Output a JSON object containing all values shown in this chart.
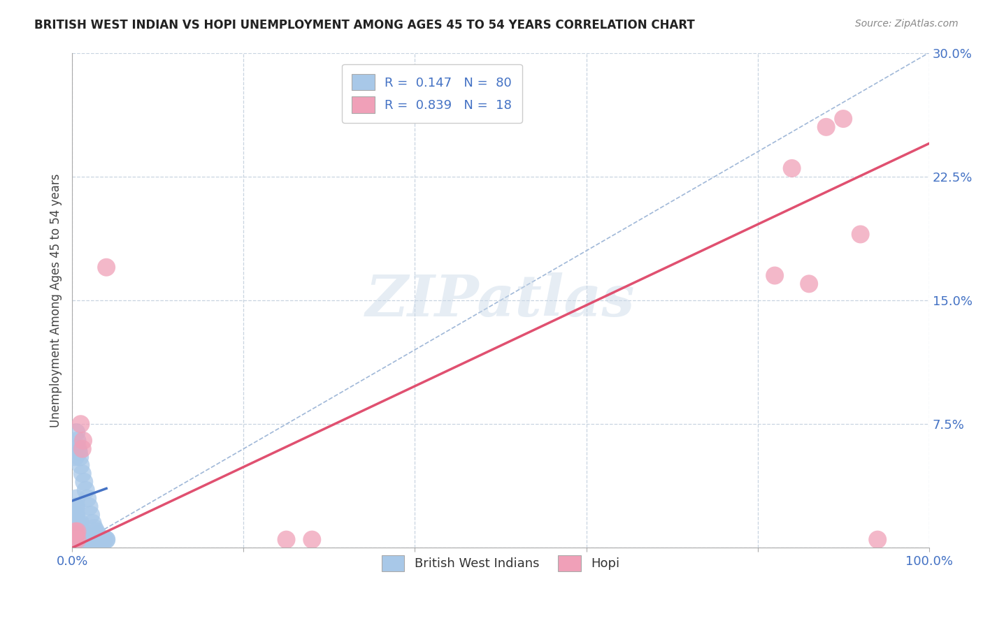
{
  "title": "BRITISH WEST INDIAN VS HOPI UNEMPLOYMENT AMONG AGES 45 TO 54 YEARS CORRELATION CHART",
  "source": "Source: ZipAtlas.com",
  "ylabel": "Unemployment Among Ages 45 to 54 years",
  "xlim": [
    0,
    1.0
  ],
  "ylim": [
    0,
    0.3
  ],
  "xticks": [
    0.0,
    0.2,
    0.4,
    0.6,
    0.8,
    1.0
  ],
  "xticklabels": [
    "0.0%",
    "",
    "",
    "",
    "",
    "100.0%"
  ],
  "yticks": [
    0.0,
    0.075,
    0.15,
    0.225,
    0.3
  ],
  "yticklabels": [
    "",
    "7.5%",
    "15.0%",
    "22.5%",
    "30.0%"
  ],
  "legend_r1": "R =  0.147",
  "legend_n1": "N =  80",
  "legend_r2": "R =  0.839",
  "legend_n2": "N =  18",
  "blue_color": "#a8c8e8",
  "pink_color": "#f0a0b8",
  "blue_line_color": "#4472c4",
  "pink_line_color": "#e05070",
  "diagonal_color": "#a0b8d8",
  "watermark": "ZIPatlas",
  "blue_scatter_x": [
    0.002,
    0.003,
    0.003,
    0.004,
    0.004,
    0.004,
    0.005,
    0.005,
    0.005,
    0.005,
    0.005,
    0.005,
    0.005,
    0.005,
    0.006,
    0.006,
    0.006,
    0.006,
    0.007,
    0.007,
    0.007,
    0.008,
    0.008,
    0.008,
    0.008,
    0.009,
    0.009,
    0.009,
    0.01,
    0.01,
    0.01,
    0.01,
    0.011,
    0.011,
    0.012,
    0.012,
    0.013,
    0.013,
    0.014,
    0.015,
    0.015,
    0.016,
    0.017,
    0.018,
    0.019,
    0.02,
    0.021,
    0.022,
    0.023,
    0.024,
    0.025,
    0.026,
    0.027,
    0.028,
    0.03,
    0.032,
    0.034,
    0.036,
    0.038,
    0.04,
    0.003,
    0.004,
    0.005,
    0.006,
    0.007,
    0.008,
    0.009,
    0.01,
    0.012,
    0.014,
    0.016,
    0.018,
    0.02,
    0.022,
    0.024,
    0.026,
    0.028,
    0.03,
    0.035,
    0.04
  ],
  "blue_scatter_y": [
    0.01,
    0.008,
    0.015,
    0.01,
    0.02,
    0.025,
    0.005,
    0.008,
    0.01,
    0.012,
    0.015,
    0.02,
    0.025,
    0.03,
    0.005,
    0.008,
    0.01,
    0.015,
    0.006,
    0.01,
    0.015,
    0.005,
    0.008,
    0.01,
    0.012,
    0.006,
    0.009,
    0.012,
    0.005,
    0.007,
    0.01,
    0.015,
    0.006,
    0.01,
    0.005,
    0.008,
    0.005,
    0.008,
    0.005,
    0.005,
    0.008,
    0.005,
    0.005,
    0.005,
    0.005,
    0.005,
    0.005,
    0.005,
    0.005,
    0.005,
    0.005,
    0.005,
    0.005,
    0.005,
    0.005,
    0.005,
    0.005,
    0.005,
    0.005,
    0.005,
    0.06,
    0.055,
    0.07,
    0.065,
    0.06,
    0.058,
    0.055,
    0.05,
    0.045,
    0.04,
    0.035,
    0.03,
    0.025,
    0.02,
    0.015,
    0.012,
    0.01,
    0.008,
    0.005,
    0.005
  ],
  "pink_scatter_x": [
    0.003,
    0.004,
    0.005,
    0.006,
    0.006,
    0.01,
    0.012,
    0.013,
    0.04,
    0.25,
    0.28,
    0.82,
    0.84,
    0.86,
    0.88,
    0.9,
    0.92,
    0.94
  ],
  "pink_scatter_y": [
    0.005,
    0.01,
    0.008,
    0.005,
    0.01,
    0.075,
    0.06,
    0.065,
    0.17,
    0.005,
    0.005,
    0.165,
    0.23,
    0.16,
    0.255,
    0.26,
    0.19,
    0.005
  ],
  "blue_line_x": [
    0.0,
    0.04
  ],
  "blue_line_y": [
    0.0285,
    0.036
  ],
  "pink_line_x": [
    0.0,
    1.0
  ],
  "pink_line_y": [
    0.0,
    0.245
  ]
}
